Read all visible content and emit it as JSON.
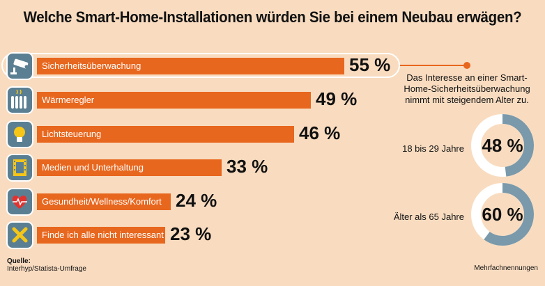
{
  "title": "Welche Smart-Home-Installationen würden Sie bei einem Neubau erwägen?",
  "colors": {
    "background": "#f9dcc0",
    "bar": "#e8671e",
    "icon": "#5b7f92",
    "donut_track": "#ffffff",
    "donut_fill": "#7a99aa"
  },
  "chart_data": [
    {
      "type": "bar",
      "orientation": "horizontal",
      "categories": [
        "Sicherheitsüberwachung",
        "Wärmeregler",
        "Lichtsteuerung",
        "Medien und Unterhaltung",
        "Gesundheit/Wellness/Komfort",
        "Finde ich alle nicht interessant"
      ],
      "values": [
        55,
        49,
        46,
        33,
        24,
        23
      ],
      "value_labels": [
        "55 %",
        "49 %",
        "46 %",
        "33 %",
        "24 %",
        "23 %"
      ],
      "icons": [
        "camera-icon",
        "radiator-icon",
        "lightbulb-icon",
        "film-icon",
        "heart-pulse-icon",
        "cross-icon"
      ],
      "highlighted": "Sicherheitsüberwachung",
      "xlim": [
        0,
        55
      ],
      "title": "Welche Smart-Home-Installationen würden Sie bei einem Neubau erwägen?"
    },
    {
      "type": "pie",
      "variant": "donut",
      "title": "Das Interesse an einer Smart-Home-Sicherheitsüberwachung nimmt mit steigendem Alter zu.",
      "items": [
        {
          "label": "18 bis 29 Jahre",
          "value": 48,
          "value_label": "48 %"
        },
        {
          "label": "Älter als 65 Jahre",
          "value": 60,
          "value_label": "60 %"
        }
      ]
    }
  ],
  "source": {
    "label": "Quelle:",
    "text": "Interhyp/Statista-Umfrage"
  },
  "note": "Mehrfachnennungen"
}
